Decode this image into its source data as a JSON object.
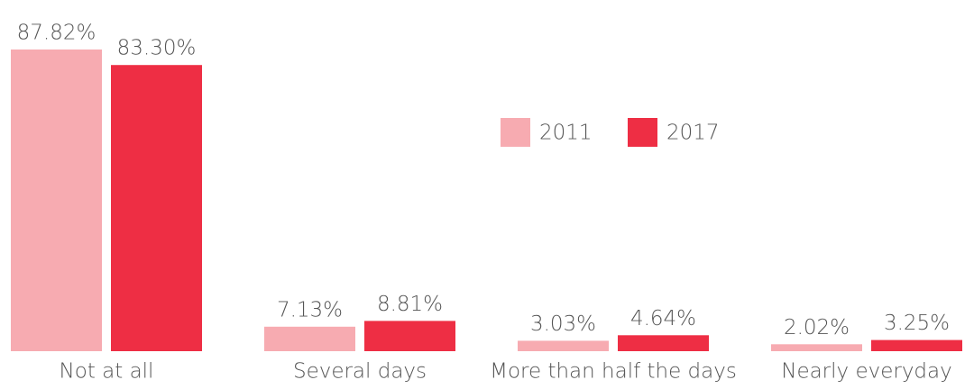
{
  "chart_data": {
    "type": "bar",
    "categories": [
      "Not at all",
      "Several days",
      "More than half the days",
      "Nearly everyday"
    ],
    "series": [
      {
        "name": "2011",
        "color": "#f7abb1",
        "values": [
          87.82,
          7.13,
          3.03,
          2.02
        ],
        "value_labels": [
          "87.82%",
          "7.13%",
          "3.03%",
          "2.02%"
        ]
      },
      {
        "name": "2017",
        "color": "#ee2e44",
        "values": [
          83.3,
          8.81,
          4.64,
          3.25
        ],
        "value_labels": [
          "83.30%",
          "8.81%",
          "4.64%",
          "3.25%"
        ]
      }
    ]
  }
}
